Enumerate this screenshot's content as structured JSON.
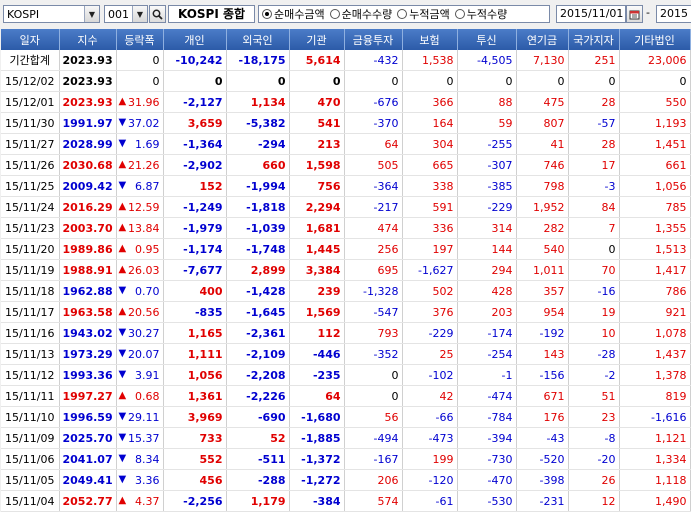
{
  "toolbar": {
    "market": "KOSPI",
    "code": "001",
    "name": "KOSPI 종합",
    "radios": [
      {
        "label": "순매수금액",
        "checked": true
      },
      {
        "label": "순매수수량",
        "checked": false
      },
      {
        "label": "누적금액",
        "checked": false
      },
      {
        "label": "누적수량",
        "checked": false
      }
    ],
    "date_from": "2015/11/01",
    "date_to": "2015"
  },
  "columns": [
    "일자",
    "지수",
    "등락폭",
    "개인",
    "외국인",
    "기관",
    "금융투자",
    "보험",
    "투신",
    "연기금",
    "국가지자",
    "기타법인"
  ],
  "summary_row": [
    "기간합계",
    "2023.93",
    "0",
    "-10,242",
    "-18,175",
    "5,614",
    "-432",
    "1,538",
    "-4,505",
    "7,130",
    "251",
    "23,006"
  ],
  "rows": [
    {
      "date": "15/12/02",
      "index": "2023.93",
      "dir": "",
      "chg": "0",
      "v": [
        "0",
        "0",
        "0",
        "0",
        "0",
        "0",
        "0",
        "0",
        "0"
      ]
    },
    {
      "date": "15/12/01",
      "index": "2023.93",
      "dir": "up",
      "chg": "31.96",
      "v": [
        "-2,127",
        "1,134",
        "470",
        "-676",
        "366",
        "88",
        "475",
        "28",
        "550"
      ]
    },
    {
      "date": "15/11/30",
      "index": "1991.97",
      "dir": "down",
      "chg": "37.02",
      "v": [
        "3,659",
        "-5,382",
        "541",
        "-370",
        "164",
        "59",
        "807",
        "-57",
        "1,193"
      ]
    },
    {
      "date": "15/11/27",
      "index": "2028.99",
      "dir": "down",
      "chg": "1.69",
      "v": [
        "-1,364",
        "-294",
        "213",
        "64",
        "304",
        "-255",
        "41",
        "28",
        "1,451"
      ]
    },
    {
      "date": "15/11/26",
      "index": "2030.68",
      "dir": "up",
      "chg": "21.26",
      "v": [
        "-2,902",
        "660",
        "1,598",
        "505",
        "665",
        "-307",
        "746",
        "17",
        "661"
      ]
    },
    {
      "date": "15/11/25",
      "index": "2009.42",
      "dir": "down",
      "chg": "6.87",
      "v": [
        "152",
        "-1,994",
        "756",
        "-364",
        "338",
        "-385",
        "798",
        "-3",
        "1,056"
      ]
    },
    {
      "date": "15/11/24",
      "index": "2016.29",
      "dir": "up",
      "chg": "12.59",
      "v": [
        "-1,249",
        "-1,818",
        "2,294",
        "-217",
        "591",
        "-229",
        "1,952",
        "84",
        "785"
      ]
    },
    {
      "date": "15/11/23",
      "index": "2003.70",
      "dir": "up",
      "chg": "13.84",
      "v": [
        "-1,979",
        "-1,039",
        "1,681",
        "474",
        "336",
        "314",
        "282",
        "7",
        "1,355"
      ]
    },
    {
      "date": "15/11/20",
      "index": "1989.86",
      "dir": "up",
      "chg": "0.95",
      "v": [
        "-1,174",
        "-1,748",
        "1,445",
        "256",
        "197",
        "144",
        "540",
        "0",
        "1,513"
      ]
    },
    {
      "date": "15/11/19",
      "index": "1988.91",
      "dir": "up",
      "chg": "26.03",
      "v": [
        "-7,677",
        "2,899",
        "3,384",
        "695",
        "-1,627",
        "294",
        "1,011",
        "70",
        "1,417"
      ]
    },
    {
      "date": "15/11/18",
      "index": "1962.88",
      "dir": "down",
      "chg": "0.70",
      "v": [
        "400",
        "-1,428",
        "239",
        "-1,328",
        "502",
        "428",
        "357",
        "-16",
        "786"
      ]
    },
    {
      "date": "15/11/17",
      "index": "1963.58",
      "dir": "up",
      "chg": "20.56",
      "v": [
        "-835",
        "-1,645",
        "1,569",
        "-547",
        "376",
        "203",
        "954",
        "19",
        "921"
      ]
    },
    {
      "date": "15/11/16",
      "index": "1943.02",
      "dir": "down",
      "chg": "30.27",
      "v": [
        "1,165",
        "-2,361",
        "112",
        "793",
        "-229",
        "-174",
        "-192",
        "10",
        "1,078"
      ]
    },
    {
      "date": "15/11/13",
      "index": "1973.29",
      "dir": "down",
      "chg": "20.07",
      "v": [
        "1,111",
        "-2,109",
        "-446",
        "-352",
        "25",
        "-254",
        "143",
        "-28",
        "1,437"
      ]
    },
    {
      "date": "15/11/12",
      "index": "1993.36",
      "dir": "down",
      "chg": "3.91",
      "v": [
        "1,056",
        "-2,208",
        "-235",
        "0",
        "-102",
        "-1",
        "-156",
        "-2",
        "1,378"
      ]
    },
    {
      "date": "15/11/11",
      "index": "1997.27",
      "dir": "up",
      "chg": "0.68",
      "v": [
        "1,361",
        "-2,226",
        "64",
        "0",
        "42",
        "-474",
        "671",
        "51",
        "819"
      ]
    },
    {
      "date": "15/11/10",
      "index": "1996.59",
      "dir": "down",
      "chg": "29.11",
      "v": [
        "3,969",
        "-690",
        "-1,680",
        "56",
        "-66",
        "-784",
        "176",
        "23",
        "-1,616"
      ]
    },
    {
      "date": "15/11/09",
      "index": "2025.70",
      "dir": "down",
      "chg": "15.37",
      "v": [
        "733",
        "52",
        "-1,885",
        "-494",
        "-473",
        "-394",
        "-43",
        "-8",
        "1,121"
      ]
    },
    {
      "date": "15/11/06",
      "index": "2041.07",
      "dir": "down",
      "chg": "8.34",
      "v": [
        "552",
        "-511",
        "-1,372",
        "-167",
        "199",
        "-730",
        "-520",
        "-20",
        "1,334"
      ]
    },
    {
      "date": "15/11/05",
      "index": "2049.41",
      "dir": "down",
      "chg": "3.36",
      "v": [
        "456",
        "-288",
        "-1,272",
        "206",
        "-120",
        "-470",
        "-398",
        "26",
        "1,118"
      ]
    },
    {
      "date": "15/11/04",
      "index": "2052.77",
      "dir": "up",
      "chg": "4.37",
      "v": [
        "-2,256",
        "1,179",
        "-384",
        "574",
        "-61",
        "-530",
        "-231",
        "12",
        "1,490"
      ]
    }
  ],
  "colors": {
    "up": "#e00000",
    "down": "#0000d0",
    "header": "#2c5ba8"
  },
  "icons": {
    "up": "triangle-up-icon",
    "down": "triangle-down-icon",
    "search": "search-icon",
    "calendar": "calendar-icon"
  }
}
